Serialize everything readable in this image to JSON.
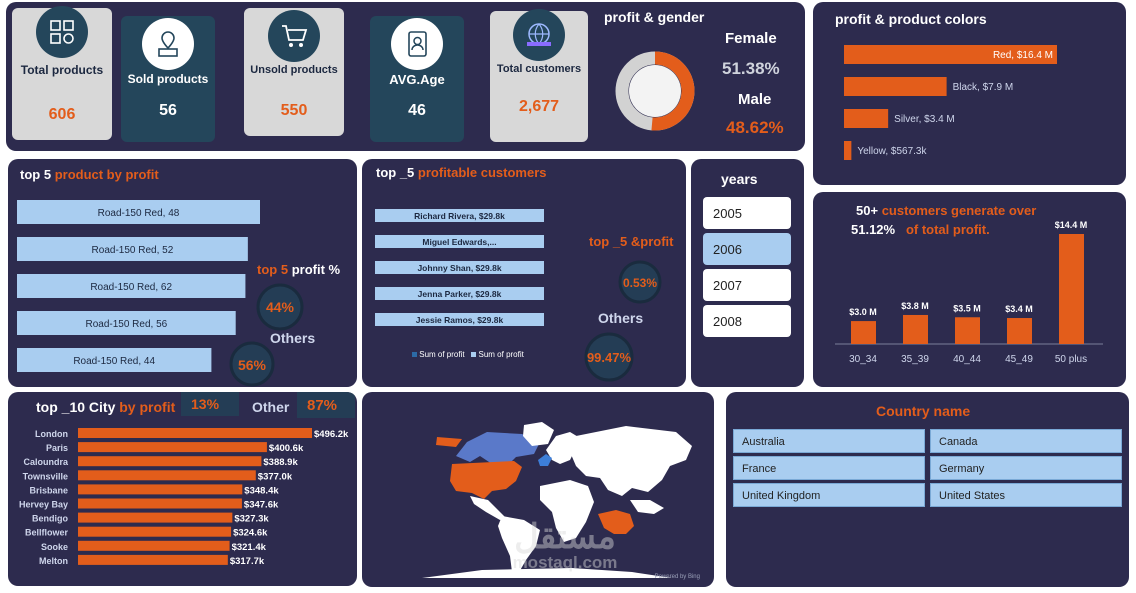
{
  "kpis": [
    {
      "label": "Total products",
      "value": "606",
      "icon": "products-grid-icon"
    },
    {
      "label": "Sold products",
      "value": "56",
      "icon": "sold-box-icon"
    },
    {
      "label": "Unsold products",
      "value": "550",
      "icon": "shopping-cart-icon"
    },
    {
      "label": "AVG.Age",
      "value": "46",
      "icon": "contact-book-icon"
    },
    {
      "label": "Total customers",
      "value": "2,677",
      "icon": "customers-globe-icon"
    }
  ],
  "gender": {
    "title": "profit & gender",
    "female_label": "Female",
    "female_value": "51.38%",
    "male_label": "Male",
    "male_value": "48.62%",
    "female_share": 0.5138
  },
  "colors_panel": {
    "title": "profit & product colors"
  },
  "top5_products": {
    "title_a": "top 5",
    "title_b": "product by profit",
    "pct_title_a": "top 5",
    "pct_title_b": "profit %",
    "top_pct": "44%",
    "others_label": "Others",
    "others_pct": "56%"
  },
  "top5_customers": {
    "title_a": "top _5",
    "title_b": "profitable customers",
    "pct_title": "top _5 &profit",
    "top_pct": "0.53%",
    "others_label": "Others",
    "others_pct": "99.47%",
    "legend_a": "Sum of profit",
    "legend_b": "Sum of profit"
  },
  "years": {
    "title": "years",
    "items": [
      "2005",
      "2006",
      "2007",
      "2008"
    ],
    "selected": "2006"
  },
  "age_panel": {
    "title_a": "50+",
    "title_b": "customers generate over",
    "title_pct": "51.12%",
    "title_c": "of total profit."
  },
  "cities": {
    "title_a": "top _10 City",
    "title_b": "by profit",
    "top_pct": "13%",
    "others_label": "Other",
    "others_pct": "87%"
  },
  "map": {
    "credit": "Powered by Bing"
  },
  "countries": {
    "title": "Country name",
    "items": [
      "Australia",
      "Canada",
      "France",
      "Germany",
      "United Kingdom",
      "United States"
    ]
  },
  "watermark": {
    "arabic": "مستقل",
    "latin": "mostaql.com"
  },
  "chart_data": [
    {
      "type": "bar",
      "orientation": "horizontal",
      "categories": [
        "Red",
        "Black",
        "Silver",
        "Yellow"
      ],
      "values": [
        16.4,
        7.9,
        3.4,
        0.5673
      ],
      "labels": [
        "Red, $16.4 M",
        "Black, $7.9 M",
        "Silver, $3.4 M",
        "Yellow, $567.3k"
      ]
    },
    {
      "type": "bar",
      "orientation": "horizontal",
      "categories": [
        "Road-150 Red, 48",
        "Road-150 Red, 52",
        "Road-150 Red, 62",
        "Road-150 Red, 56",
        "Road-150 Red, 44"
      ],
      "values": [
        100,
        95,
        94,
        90,
        80
      ]
    },
    {
      "type": "bar",
      "orientation": "horizontal",
      "categories": [
        "Richard Rivera",
        "Miguel Edwards",
        "Johnny Shan",
        "Jenna Parker",
        "Jessie Ramos"
      ],
      "values": [
        29.8,
        29.8,
        29.8,
        29.8,
        29.8
      ],
      "labels": [
        "Richard Rivera, $29.8k",
        "Miguel Edwards,...",
        "Johnny Shan, $29.8k",
        "Jenna Parker, $29.8k",
        "Jessie Ramos, $29.8k"
      ]
    },
    {
      "type": "bar",
      "categories": [
        "30_34",
        "35_39",
        "40_44",
        "45_49",
        "50 plus"
      ],
      "values": [
        3.0,
        3.8,
        3.5,
        3.4,
        14.4
      ],
      "labels": [
        "$3.0 M",
        "$3.8 M",
        "$3.5 M",
        "$3.4 M",
        "$14.4 M"
      ]
    },
    {
      "type": "bar",
      "orientation": "horizontal",
      "categories": [
        "London",
        "Paris",
        "Caloundra",
        "Townsville",
        "Brisbane",
        "Hervey Bay",
        "Bendigo",
        "Bellflower",
        "Sooke",
        "Melton"
      ],
      "values": [
        496.2,
        400.6,
        388.9,
        377.0,
        348.4,
        347.6,
        327.3,
        324.6,
        321.4,
        317.7
      ],
      "labels": [
        "$496.2k",
        "$400.6k",
        "$388.9k",
        "$377.0k",
        "$348.4k",
        "$347.6k",
        "$327.3k",
        "$324.6k",
        "$321.4k",
        "$317.7k"
      ]
    },
    {
      "type": "pie",
      "categories": [
        "top 5",
        "Others"
      ],
      "values": [
        44,
        56
      ]
    },
    {
      "type": "pie",
      "categories": [
        "top _5",
        "Others"
      ],
      "values": [
        0.53,
        99.47
      ]
    }
  ]
}
